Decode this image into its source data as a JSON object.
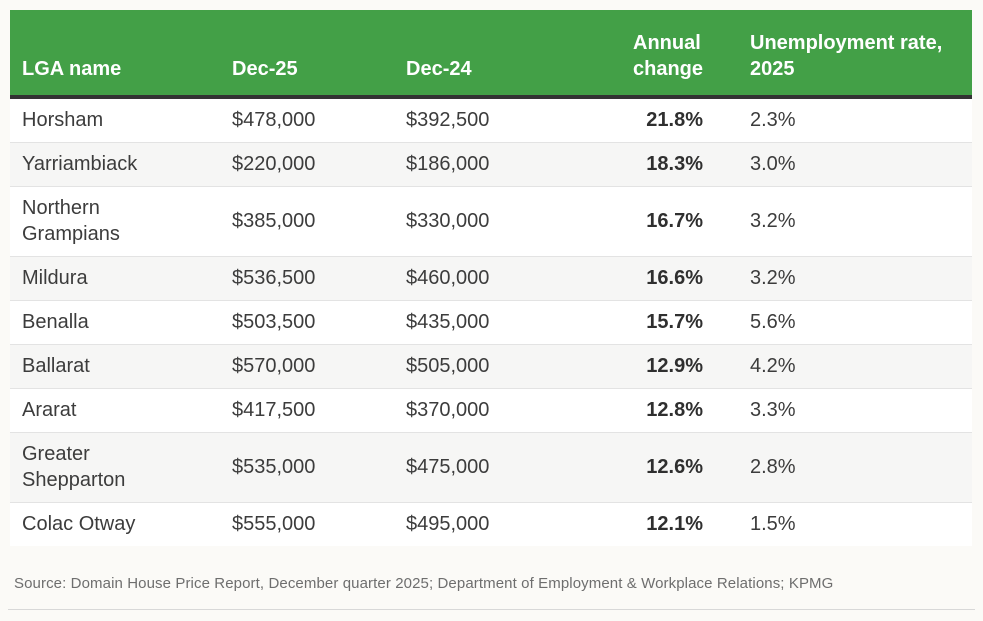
{
  "colors": {
    "header_green": "#43a047",
    "header_text": "#ffffff",
    "header_bottom_border": "#333333",
    "row_alt_bg": "#f6f6f5",
    "row_bg": "#ffffff",
    "cell_text": "#3c3c3c",
    "source_text": "#6e6e6e",
    "page_bg": "#fbfaf7"
  },
  "source_note": "Source: Domain House Price Report, December quarter 2025; Department of Employment & Workplace Relations; KPMG",
  "chart_data": {
    "type": "table",
    "columns": [
      "LGA name",
      "Dec-25",
      "Dec-24",
      "Annual change",
      "Unemployment rate, 2025"
    ],
    "rows": [
      {
        "lga": "Horsham",
        "dec25": "$478,000",
        "dec24": "$392,500",
        "annual_change": "21.8%",
        "unemployment_rate": "2.3%"
      },
      {
        "lga": "Yarriambiack",
        "dec25": "$220,000",
        "dec24": "$186,000",
        "annual_change": "18.3%",
        "unemployment_rate": "3.0%"
      },
      {
        "lga": "Northern Grampians",
        "dec25": "$385,000",
        "dec24": "$330,000",
        "annual_change": "16.7%",
        "unemployment_rate": "3.2%"
      },
      {
        "lga": "Mildura",
        "dec25": "$536,500",
        "dec24": "$460,000",
        "annual_change": "16.6%",
        "unemployment_rate": "3.2%"
      },
      {
        "lga": "Benalla",
        "dec25": "$503,500",
        "dec24": "$435,000",
        "annual_change": "15.7%",
        "unemployment_rate": "5.6%"
      },
      {
        "lga": "Ballarat",
        "dec25": "$570,000",
        "dec24": "$505,000",
        "annual_change": "12.9%",
        "unemployment_rate": "4.2%"
      },
      {
        "lga": "Ararat",
        "dec25": "$417,500",
        "dec24": "$370,000",
        "annual_change": "12.8%",
        "unemployment_rate": "3.3%"
      },
      {
        "lga": "Greater Shepparton",
        "dec25": "$535,000",
        "dec24": "$475,000",
        "annual_change": "12.6%",
        "unemployment_rate": "2.8%"
      },
      {
        "lga": "Colac Otway",
        "dec25": "$555,000",
        "dec24": "$495,000",
        "annual_change": "12.1%",
        "unemployment_rate": "1.5%"
      }
    ]
  }
}
